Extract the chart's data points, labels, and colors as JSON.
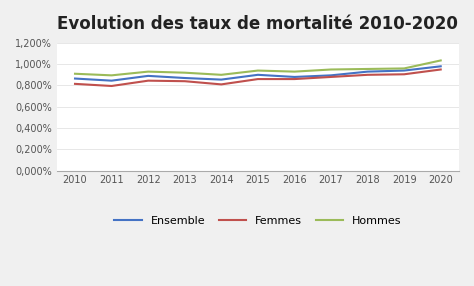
{
  "title": "Evolution des taux de mortalité 2010-2020",
  "years": [
    2010,
    2011,
    2012,
    2013,
    2014,
    2015,
    2016,
    2017,
    2018,
    2019,
    2020
  ],
  "ensemble": [
    0.00865,
    0.00845,
    0.0089,
    0.0087,
    0.00855,
    0.009,
    0.0088,
    0.00895,
    0.0093,
    0.0094,
    0.0098
  ],
  "femmes": [
    0.00815,
    0.00795,
    0.00845,
    0.0084,
    0.0081,
    0.0086,
    0.0086,
    0.0088,
    0.009,
    0.00905,
    0.0095
  ],
  "hommes": [
    0.0091,
    0.00895,
    0.0093,
    0.0092,
    0.009,
    0.0094,
    0.0093,
    0.0095,
    0.00955,
    0.0096,
    0.01035
  ],
  "ensemble_color": "#4472C4",
  "femmes_color": "#C0504D",
  "hommes_color": "#9BBB59",
  "ylim": [
    0.0,
    0.012
  ],
  "yticks": [
    0.0,
    0.002,
    0.004,
    0.006,
    0.008,
    0.01,
    0.012
  ],
  "ytick_labels": [
    "0,000%",
    "0,200%",
    "0,400%",
    "0,600%",
    "0,800%",
    "1,000%",
    "1,200%"
  ],
  "outer_bg": "#f0f0f0",
  "inner_bg": "#ffffff",
  "legend_labels": [
    "Ensemble",
    "Femmes",
    "Hommes"
  ]
}
